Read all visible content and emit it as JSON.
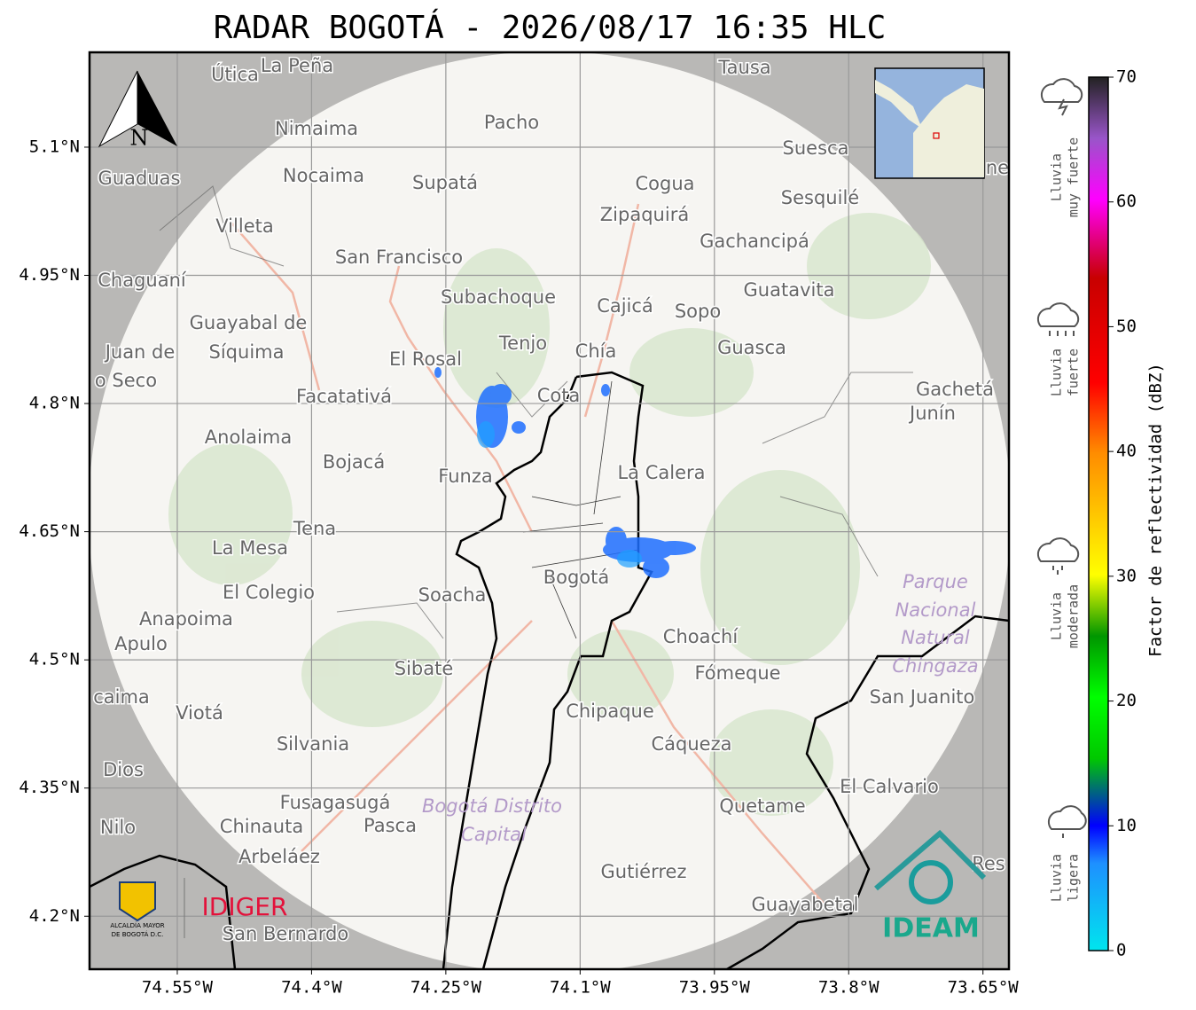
{
  "title": "RADAR BOGOTÁ - 2026/08/17 16:35 HLC",
  "map": {
    "lonlim": [
      -74.648,
      -73.621
    ],
    "latlim": [
      4.138,
      5.211
    ],
    "lon_ticks": [
      {
        "value": -74.55,
        "label": "74.55°W"
      },
      {
        "value": -74.4,
        "label": "74.4°W"
      },
      {
        "value": -74.25,
        "label": "74.25°W"
      },
      {
        "value": -74.1,
        "label": "74.1°W"
      },
      {
        "value": -73.95,
        "label": "73.95°W"
      },
      {
        "value": -73.8,
        "label": "73.8°W"
      },
      {
        "value": -73.65,
        "label": "73.65°W"
      }
    ],
    "lat_ticks": [
      {
        "value": 5.1,
        "label": "5.1°N"
      },
      {
        "value": 4.95,
        "label": "4.95°N"
      },
      {
        "value": 4.8,
        "label": "4.8°N"
      },
      {
        "value": 4.65,
        "label": "4.65°N"
      },
      {
        "value": 4.5,
        "label": "4.5°N"
      },
      {
        "value": 4.35,
        "label": "4.35°N"
      },
      {
        "value": 4.2,
        "label": "4.2°N"
      }
    ],
    "north": "N",
    "places": [
      "Útica",
      "La Peña",
      "Tausa",
      "Pacho",
      "Nimaima",
      "Guaduas",
      "Nocaima",
      "Supatá",
      "Cogua",
      "Suesca",
      "Sesquilé",
      "Zipaquirá",
      "Villeta",
      "Gachancipá",
      "San Francisco",
      "Chaguaní",
      "Guatavita",
      "Subachoque",
      "Cajicá",
      "Sopo",
      "Guayabal de",
      "Síquima",
      "Tenjo",
      "Juan de",
      "Chía",
      "Guasca",
      "El Rosal",
      "o Seco",
      "Cota",
      "Facatativá",
      "Gachetá",
      "Junín",
      "Anolaima",
      "Bojacá",
      "La Calera",
      "Funza",
      "Tena",
      "La Mesa",
      "El Colegio",
      "Soacha",
      "Bogotá",
      "Anapoima",
      "Apulo",
      "Choachí",
      "Sibaté",
      "Fómeque",
      "San Juanito",
      "caima",
      "Viotá",
      "Chipaque",
      "Silvania",
      "Cáqueza",
      "Dios",
      "El Calvario",
      "Fusagasugá",
      "Quetame",
      "Nilo",
      "Chinauta",
      "Pasca",
      "Arbeláez",
      "Gutiérrez",
      "Res",
      "Guayabetal",
      "San Bernardo",
      "ne"
    ],
    "parks": [
      "Parque",
      "Nacional",
      "Natural",
      "Chingaza",
      "Bogotá Distrito",
      "Capital"
    ]
  },
  "logos": {
    "alcaldia": [
      "ALCALDÍA MAYOR",
      "DE BOGOTÁ D.C."
    ],
    "idiger": "IDIGER",
    "ideam": "IDEAM"
  },
  "colorbar": {
    "label": "Factor de reflectividad (dBZ)",
    "lim": [
      0,
      70
    ],
    "ticks": [
      0,
      10,
      20,
      30,
      40,
      50,
      60,
      70
    ]
  },
  "rain_classes": [
    [
      "Lluvia",
      "muy fuerte"
    ],
    [
      "Lluvia",
      "fuerte"
    ],
    [
      "Lluvia",
      "moderada"
    ],
    [
      "Lluvia",
      "ligera"
    ]
  ]
}
